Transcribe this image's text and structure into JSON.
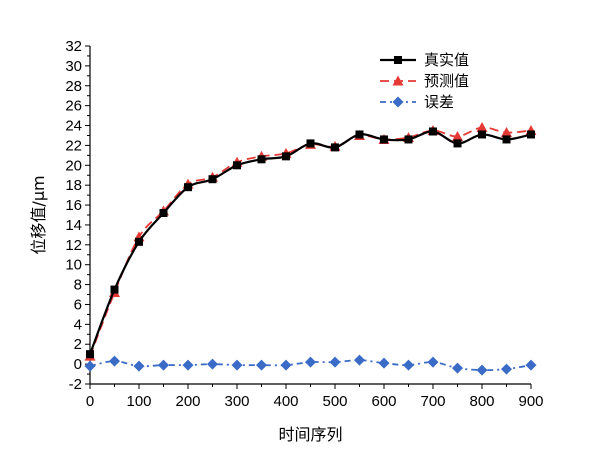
{
  "chart_data": {
    "type": "line",
    "title": "",
    "xlabel": "时间序列",
    "ylabel": "位移值/μm",
    "xlim": [
      0,
      900
    ],
    "ylim": [
      -2,
      32
    ],
    "x_ticks": [
      0,
      100,
      200,
      300,
      400,
      500,
      600,
      700,
      800,
      900
    ],
    "y_ticks": [
      -2,
      0,
      2,
      4,
      6,
      8,
      10,
      12,
      14,
      16,
      18,
      20,
      22,
      24,
      26,
      28,
      30,
      32
    ],
    "grid": false,
    "legend_position": "top-right",
    "x": [
      0,
      50,
      100,
      150,
      200,
      250,
      300,
      350,
      400,
      450,
      500,
      550,
      600,
      650,
      700,
      750,
      800,
      850,
      900
    ],
    "series": [
      {
        "name": "真实值",
        "color": "#000000",
        "marker": "square",
        "line_style": "solid",
        "values": [
          1.0,
          7.5,
          12.3,
          15.2,
          17.8,
          18.6,
          20.0,
          20.6,
          20.9,
          22.2,
          21.8,
          23.1,
          22.6,
          22.6,
          23.4,
          22.2,
          23.1,
          22.6,
          23.1
        ]
      },
      {
        "name": "预测值",
        "color": "#e53935",
        "marker": "triangle",
        "line_style": "dashed",
        "values": [
          0.8,
          7.2,
          12.8,
          15.4,
          18.1,
          18.8,
          20.3,
          20.9,
          21.2,
          22.1,
          21.9,
          23.0,
          22.6,
          22.8,
          23.5,
          22.9,
          23.8,
          23.3,
          23.5
        ]
      },
      {
        "name": "误差",
        "color": "#3a6bc7",
        "marker": "diamond",
        "line_style": "dashdot",
        "values": [
          -0.2,
          0.3,
          -0.2,
          -0.1,
          -0.1,
          0.0,
          -0.1,
          -0.1,
          -0.1,
          0.2,
          0.2,
          0.4,
          0.1,
          -0.1,
          0.2,
          -0.4,
          -0.6,
          -0.5,
          -0.1
        ]
      }
    ]
  }
}
